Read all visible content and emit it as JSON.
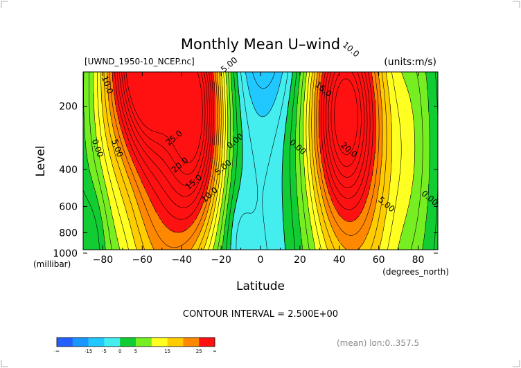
{
  "chart_data": {
    "type": "heatmap",
    "title": "Monthly Mean U–wind",
    "subtitle_left": "[UWND_1950-10_NCEP.nc]",
    "subtitle_right": "(units:m/s)",
    "xlabel": "Latitude",
    "ylabel": "Level",
    "x_unit": "(degrees_north)",
    "y_unit": "(millibar)",
    "xlim": [
      -90,
      90
    ],
    "ylim": [
      1000,
      30
    ],
    "y_scale": "log",
    "x_ticks": [
      -80,
      -60,
      -40,
      -20,
      0,
      20,
      40,
      60,
      80
    ],
    "x_tick_labels": [
      "−80",
      "−60",
      "−40",
      "−20",
      "0",
      "20",
      "40",
      "60",
      "80"
    ],
    "y_ticks": [
      200,
      400,
      600,
      800,
      1000
    ],
    "y_tick_labels": [
      "200",
      "400",
      "600",
      "800",
      "1000"
    ],
    "contour_interval_text": "CONTOUR INTERVAL = 2.500E+00",
    "footer_text": "(mean) lon:0..357.5",
    "jets": [
      {
        "lat": -60,
        "level": 100,
        "peak": 40
      },
      {
        "lat": -32,
        "level": 200,
        "peak": 30
      },
      {
        "lat": 42,
        "level": 200,
        "peak": 27.5
      }
    ],
    "contour_labels": [
      {
        "text": "10.0",
        "lat": -79,
        "level": 160
      },
      {
        "text": "0.00",
        "lat": -84,
        "level": 320
      },
      {
        "text": "5.00",
        "lat": -74,
        "level": 320
      },
      {
        "text": "25.0",
        "lat": -43,
        "level": 290
      },
      {
        "text": "20.0",
        "lat": -40,
        "level": 390
      },
      {
        "text": "15.0",
        "lat": -33,
        "level": 470
      },
      {
        "text": "10.0",
        "lat": -25,
        "level": 540
      },
      {
        "text": "5.00",
        "lat": -18,
        "level": 400
      },
      {
        "text": "0.00",
        "lat": -12,
        "level": 300
      },
      {
        "text": "5.00",
        "lat": -15,
        "level": 130
      },
      {
        "text": "0.00",
        "lat": 18,
        "level": 320
      },
      {
        "text": "15.0",
        "lat": 31,
        "level": 170
      },
      {
        "text": "10.0",
        "lat": 45,
        "level": 110
      },
      {
        "text": "20.0",
        "lat": 44,
        "level": 330
      },
      {
        "text": "5.00",
        "lat": 63,
        "level": 600
      },
      {
        "text": "0.00",
        "lat": 85,
        "level": 560
      }
    ],
    "colorbar": {
      "colors": [
        "#2460ff",
        "#1a96ff",
        "#20c8ff",
        "#44eeee",
        "#11cc33",
        "#77ee22",
        "#ffff22",
        "#ffcc00",
        "#ff8800",
        "#ff1111"
      ],
      "tick_labels": [
        "-∞",
        "-15",
        "-5",
        "0",
        "5",
        "15",
        "25",
        "∞"
      ]
    }
  }
}
